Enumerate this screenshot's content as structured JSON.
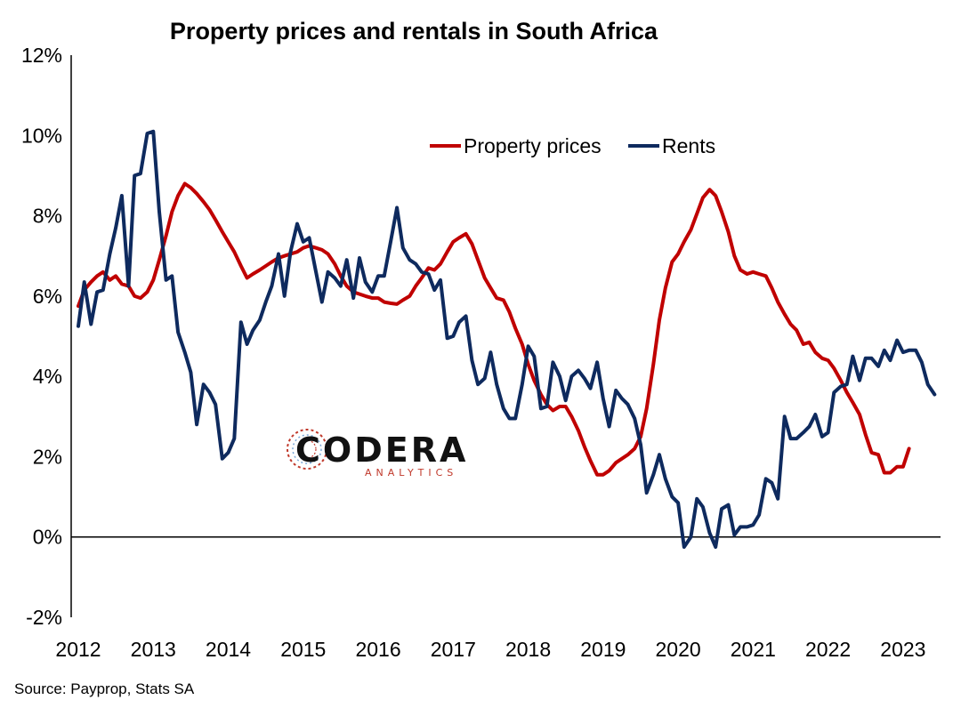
{
  "chart_data": {
    "type": "line",
    "title": "Property prices and rentals in South Africa",
    "source": "Source: Payprop, Stats SA",
    "ylim": [
      -2,
      12
    ],
    "yticks": [
      -2,
      0,
      2,
      4,
      6,
      8,
      10,
      12
    ],
    "ytick_labels": [
      "-2%",
      "0%",
      "2%",
      "4%",
      "6%",
      "8%",
      "10%",
      "12%"
    ],
    "xlim": [
      2012.0,
      2023.5
    ],
    "xticks": [
      2012,
      2013,
      2014,
      2015,
      2016,
      2017,
      2018,
      2019,
      2020,
      2021,
      2022,
      2023
    ],
    "xtick_labels": [
      "2012",
      "2013",
      "2014",
      "2015",
      "2016",
      "2017",
      "2018",
      "2019",
      "2020",
      "2021",
      "2022",
      "2023"
    ],
    "grid": false,
    "legend": "top-right",
    "series": [
      {
        "name": "Property prices",
        "color": "#c00000",
        "points": [
          [
            2012.0,
            5.75
          ],
          [
            2012.08,
            6.15
          ],
          [
            2012.17,
            6.35
          ],
          [
            2012.25,
            6.5
          ],
          [
            2012.33,
            6.6
          ],
          [
            2012.42,
            6.4
          ],
          [
            2012.5,
            6.5
          ],
          [
            2012.58,
            6.3
          ],
          [
            2012.67,
            6.25
          ],
          [
            2012.75,
            6.0
          ],
          [
            2012.83,
            5.95
          ],
          [
            2012.92,
            6.1
          ],
          [
            2013.0,
            6.4
          ],
          [
            2013.08,
            6.9
          ],
          [
            2013.17,
            7.5
          ],
          [
            2013.25,
            8.1
          ],
          [
            2013.33,
            8.5
          ],
          [
            2013.42,
            8.8
          ],
          [
            2013.5,
            8.7
          ],
          [
            2013.58,
            8.55
          ],
          [
            2013.67,
            8.35
          ],
          [
            2013.75,
            8.15
          ],
          [
            2013.83,
            7.9
          ],
          [
            2013.92,
            7.6
          ],
          [
            2014.0,
            7.35
          ],
          [
            2014.08,
            7.1
          ],
          [
            2014.17,
            6.75
          ],
          [
            2014.25,
            6.45
          ],
          [
            2014.33,
            6.55
          ],
          [
            2014.42,
            6.65
          ],
          [
            2014.5,
            6.75
          ],
          [
            2014.58,
            6.85
          ],
          [
            2014.67,
            6.95
          ],
          [
            2014.75,
            7.0
          ],
          [
            2014.83,
            7.05
          ],
          [
            2014.92,
            7.1
          ],
          [
            2015.0,
            7.2
          ],
          [
            2015.08,
            7.25
          ],
          [
            2015.17,
            7.2
          ],
          [
            2015.25,
            7.15
          ],
          [
            2015.33,
            7.05
          ],
          [
            2015.42,
            6.8
          ],
          [
            2015.5,
            6.5
          ],
          [
            2015.58,
            6.25
          ],
          [
            2015.67,
            6.1
          ],
          [
            2015.75,
            6.05
          ],
          [
            2015.83,
            6.0
          ],
          [
            2015.92,
            5.95
          ],
          [
            2016.0,
            5.95
          ],
          [
            2016.08,
            5.85
          ],
          [
            2016.17,
            5.82
          ],
          [
            2016.25,
            5.8
          ],
          [
            2016.33,
            5.9
          ],
          [
            2016.42,
            6.0
          ],
          [
            2016.5,
            6.25
          ],
          [
            2016.58,
            6.45
          ],
          [
            2016.67,
            6.7
          ],
          [
            2016.75,
            6.65
          ],
          [
            2016.83,
            6.8
          ],
          [
            2016.92,
            7.1
          ],
          [
            2017.0,
            7.35
          ],
          [
            2017.08,
            7.45
          ],
          [
            2017.17,
            7.55
          ],
          [
            2017.25,
            7.3
          ],
          [
            2017.33,
            6.9
          ],
          [
            2017.42,
            6.45
          ],
          [
            2017.5,
            6.2
          ],
          [
            2017.58,
            5.95
          ],
          [
            2017.67,
            5.9
          ],
          [
            2017.75,
            5.6
          ],
          [
            2017.83,
            5.2
          ],
          [
            2017.92,
            4.8
          ],
          [
            2018.0,
            4.3
          ],
          [
            2018.08,
            3.9
          ],
          [
            2018.17,
            3.55
          ],
          [
            2018.25,
            3.3
          ],
          [
            2018.33,
            3.15
          ],
          [
            2018.42,
            3.25
          ],
          [
            2018.5,
            3.25
          ],
          [
            2018.58,
            3.0
          ],
          [
            2018.67,
            2.65
          ],
          [
            2018.75,
            2.25
          ],
          [
            2018.83,
            1.9
          ],
          [
            2018.92,
            1.55
          ],
          [
            2019.0,
            1.55
          ],
          [
            2019.08,
            1.65
          ],
          [
            2019.17,
            1.85
          ],
          [
            2019.25,
            1.95
          ],
          [
            2019.33,
            2.05
          ],
          [
            2019.42,
            2.2
          ],
          [
            2019.5,
            2.5
          ],
          [
            2019.58,
            3.2
          ],
          [
            2019.67,
            4.3
          ],
          [
            2019.75,
            5.4
          ],
          [
            2019.83,
            6.2
          ],
          [
            2019.92,
            6.85
          ],
          [
            2020.0,
            7.05
          ],
          [
            2020.08,
            7.35
          ],
          [
            2020.17,
            7.65
          ],
          [
            2020.25,
            8.05
          ],
          [
            2020.33,
            8.45
          ],
          [
            2020.42,
            8.65
          ],
          [
            2020.5,
            8.5
          ],
          [
            2020.58,
            8.1
          ],
          [
            2020.67,
            7.6
          ],
          [
            2020.75,
            7.0
          ],
          [
            2020.83,
            6.65
          ],
          [
            2020.92,
            6.55
          ],
          [
            2021.0,
            6.6
          ],
          [
            2021.08,
            6.55
          ],
          [
            2021.17,
            6.5
          ],
          [
            2021.25,
            6.2
          ],
          [
            2021.33,
            5.85
          ],
          [
            2021.42,
            5.55
          ],
          [
            2021.5,
            5.3
          ],
          [
            2021.58,
            5.15
          ],
          [
            2021.67,
            4.8
          ],
          [
            2021.75,
            4.85
          ],
          [
            2021.83,
            4.6
          ],
          [
            2021.92,
            4.45
          ],
          [
            2022.0,
            4.4
          ],
          [
            2022.08,
            4.2
          ],
          [
            2022.17,
            3.9
          ],
          [
            2022.25,
            3.6
          ],
          [
            2022.33,
            3.35
          ],
          [
            2022.42,
            3.05
          ],
          [
            2022.5,
            2.55
          ],
          [
            2022.58,
            2.1
          ],
          [
            2022.67,
            2.05
          ],
          [
            2022.75,
            1.6
          ],
          [
            2022.83,
            1.6
          ],
          [
            2022.92,
            1.75
          ],
          [
            2023.0,
            1.75
          ],
          [
            2023.08,
            2.2
          ]
        ]
      },
      {
        "name": "Rents",
        "color": "#0e2a5e",
        "points": [
          [
            2012.0,
            5.25
          ],
          [
            2012.08,
            6.35
          ],
          [
            2012.17,
            5.3
          ],
          [
            2012.25,
            6.1
          ],
          [
            2012.33,
            6.15
          ],
          [
            2012.42,
            7.05
          ],
          [
            2012.5,
            7.7
          ],
          [
            2012.58,
            8.5
          ],
          [
            2012.67,
            6.25
          ],
          [
            2012.75,
            9.0
          ],
          [
            2012.83,
            9.05
          ],
          [
            2012.92,
            10.05
          ],
          [
            2013.0,
            10.1
          ],
          [
            2013.08,
            8.1
          ],
          [
            2013.17,
            6.4
          ],
          [
            2013.25,
            6.5
          ],
          [
            2013.33,
            5.1
          ],
          [
            2013.42,
            4.6
          ],
          [
            2013.5,
            4.1
          ],
          [
            2013.58,
            2.8
          ],
          [
            2013.67,
            3.8
          ],
          [
            2013.75,
            3.6
          ],
          [
            2013.83,
            3.3
          ],
          [
            2013.92,
            1.95
          ],
          [
            2014.0,
            2.1
          ],
          [
            2014.08,
            2.45
          ],
          [
            2014.17,
            5.35
          ],
          [
            2014.25,
            4.8
          ],
          [
            2014.33,
            5.15
          ],
          [
            2014.42,
            5.4
          ],
          [
            2014.5,
            5.85
          ],
          [
            2014.58,
            6.25
          ],
          [
            2014.67,
            7.05
          ],
          [
            2014.75,
            6.0
          ],
          [
            2014.83,
            7.1
          ],
          [
            2014.92,
            7.8
          ],
          [
            2015.0,
            7.35
          ],
          [
            2015.08,
            7.45
          ],
          [
            2015.17,
            6.6
          ],
          [
            2015.25,
            5.85
          ],
          [
            2015.33,
            6.6
          ],
          [
            2015.42,
            6.45
          ],
          [
            2015.5,
            6.25
          ],
          [
            2015.58,
            6.9
          ],
          [
            2015.67,
            5.95
          ],
          [
            2015.75,
            6.95
          ],
          [
            2015.83,
            6.35
          ],
          [
            2015.92,
            6.1
          ],
          [
            2016.0,
            6.5
          ],
          [
            2016.08,
            6.5
          ],
          [
            2016.17,
            7.4
          ],
          [
            2016.25,
            8.2
          ],
          [
            2016.33,
            7.2
          ],
          [
            2016.42,
            6.9
          ],
          [
            2016.5,
            6.8
          ],
          [
            2016.58,
            6.6
          ],
          [
            2016.67,
            6.55
          ],
          [
            2016.75,
            6.15
          ],
          [
            2016.83,
            6.4
          ],
          [
            2016.92,
            4.95
          ],
          [
            2017.0,
            5.0
          ],
          [
            2017.08,
            5.35
          ],
          [
            2017.17,
            5.5
          ],
          [
            2017.25,
            4.4
          ],
          [
            2017.33,
            3.8
          ],
          [
            2017.42,
            3.95
          ],
          [
            2017.5,
            4.6
          ],
          [
            2017.58,
            3.8
          ],
          [
            2017.67,
            3.2
          ],
          [
            2017.75,
            2.95
          ],
          [
            2017.83,
            2.95
          ],
          [
            2017.92,
            3.8
          ],
          [
            2018.0,
            4.75
          ],
          [
            2018.08,
            4.5
          ],
          [
            2018.17,
            3.2
          ],
          [
            2018.25,
            3.25
          ],
          [
            2018.33,
            4.35
          ],
          [
            2018.42,
            4.0
          ],
          [
            2018.5,
            3.4
          ],
          [
            2018.58,
            4.0
          ],
          [
            2018.67,
            4.15
          ],
          [
            2018.75,
            3.95
          ],
          [
            2018.83,
            3.7
          ],
          [
            2018.92,
            4.35
          ],
          [
            2019.0,
            3.45
          ],
          [
            2019.08,
            2.75
          ],
          [
            2019.17,
            3.65
          ],
          [
            2019.25,
            3.45
          ],
          [
            2019.33,
            3.3
          ],
          [
            2019.42,
            2.95
          ],
          [
            2019.5,
            2.3
          ],
          [
            2019.58,
            1.1
          ],
          [
            2019.67,
            1.55
          ],
          [
            2019.75,
            2.05
          ],
          [
            2019.83,
            1.45
          ],
          [
            2019.92,
            1.0
          ],
          [
            2020.0,
            0.85
          ],
          [
            2020.08,
            -0.25
          ],
          [
            2020.17,
            0.0
          ],
          [
            2020.25,
            0.95
          ],
          [
            2020.33,
            0.75
          ],
          [
            2020.42,
            0.1
          ],
          [
            2020.5,
            -0.25
          ],
          [
            2020.58,
            0.7
          ],
          [
            2020.67,
            0.8
          ],
          [
            2020.75,
            0.05
          ],
          [
            2020.83,
            0.25
          ],
          [
            2020.92,
            0.25
          ],
          [
            2021.0,
            0.3
          ],
          [
            2021.08,
            0.55
          ],
          [
            2021.17,
            1.45
          ],
          [
            2021.25,
            1.35
          ],
          [
            2021.33,
            0.95
          ],
          [
            2021.42,
            3.0
          ],
          [
            2021.5,
            2.45
          ],
          [
            2021.58,
            2.45
          ],
          [
            2021.67,
            2.6
          ],
          [
            2021.75,
            2.75
          ],
          [
            2021.83,
            3.05
          ],
          [
            2021.92,
            2.5
          ],
          [
            2022.0,
            2.6
          ],
          [
            2022.08,
            3.6
          ],
          [
            2022.17,
            3.75
          ],
          [
            2022.25,
            3.8
          ],
          [
            2022.33,
            4.5
          ],
          [
            2022.42,
            3.9
          ],
          [
            2022.5,
            4.45
          ],
          [
            2022.58,
            4.45
          ],
          [
            2022.67,
            4.25
          ],
          [
            2022.75,
            4.65
          ],
          [
            2022.83,
            4.4
          ],
          [
            2022.92,
            4.9
          ],
          [
            2023.0,
            4.6
          ],
          [
            2023.08,
            4.65
          ],
          [
            2023.17,
            4.65
          ],
          [
            2023.25,
            4.35
          ],
          [
            2023.33,
            3.8
          ],
          [
            2023.42,
            3.55
          ]
        ]
      }
    ]
  },
  "logo": {
    "name": "CODERA",
    "tagline": "ANALYTICS"
  }
}
